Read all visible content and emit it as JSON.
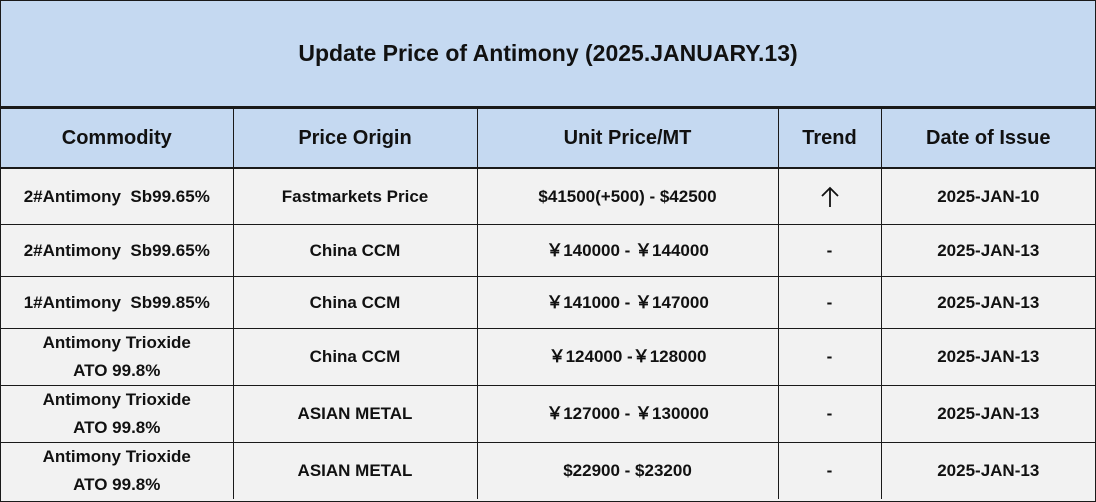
{
  "title": "Update Price of Antimony (2025.JANUARY.13)",
  "columns": [
    "Commodity",
    "Price Origin",
    "Unit Price/MT",
    "Trend",
    "Date of Issue"
  ],
  "rows": [
    {
      "commodity": "2#Antimony  Sb99.65%",
      "origin": "Fastmarkets Price",
      "price": "$41500(+500) - $42500",
      "trend": "up-arrow-icon",
      "trend_text": "",
      "date": "2025-JAN-10"
    },
    {
      "commodity": "2#Antimony  Sb99.65%",
      "origin": "China CCM",
      "price": "￥140000 - ￥144000",
      "trend": "",
      "trend_text": "-",
      "date": "2025-JAN-13"
    },
    {
      "commodity": "1#Antimony  Sb99.85%",
      "origin": "China CCM",
      "price": "￥141000 - ￥147000",
      "trend": "",
      "trend_text": "-",
      "date": "2025-JAN-13"
    },
    {
      "commodity_line1": "Antimony Trioxide",
      "commodity_line2": "ATO 99.8%",
      "origin": "China CCM",
      "price": "￥124000 -￥128000",
      "trend": "",
      "trend_text": "-",
      "date": "2025-JAN-13"
    },
    {
      "commodity_line1": "Antimony Trioxide",
      "commodity_line2": "ATO 99.8%",
      "origin": "ASIAN METAL",
      "price": "￥127000 - ￥130000",
      "trend": "",
      "trend_text": "-",
      "date": "2025-JAN-13"
    },
    {
      "commodity_line1": "Antimony Trioxide",
      "commodity_line2": "ATO 99.8%",
      "origin": "ASIAN METAL",
      "price": "$22900 - $23200",
      "trend": "",
      "trend_text": "-",
      "date": "2025-JAN-13"
    }
  ]
}
